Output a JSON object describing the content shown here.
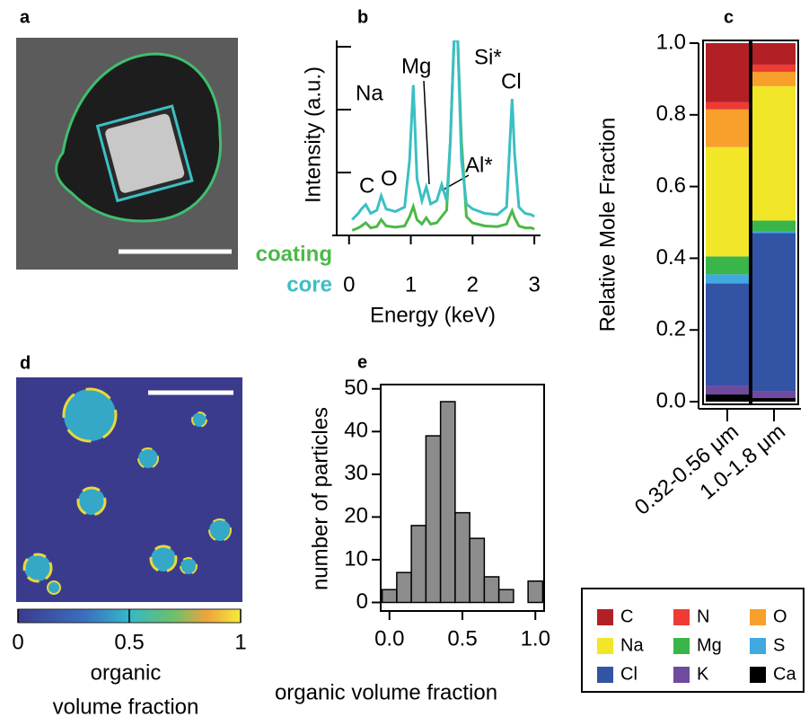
{
  "panel_a": {
    "label": "a"
  },
  "panel_d": {
    "label": "d",
    "colorbar": {
      "lim": [
        0,
        1
      ],
      "ticks": [
        0,
        0.5,
        1
      ],
      "label_lines": [
        "organic",
        "volume fraction"
      ]
    }
  },
  "chart_data": [
    {
      "type": "line",
      "label": "b",
      "xlabel": "Energy (keV)",
      "ylabel": "Intensity (a.u.)",
      "xlim": [
        -0.2,
        3.1
      ],
      "xticks": [
        0,
        1,
        2,
        3
      ],
      "ylim": [
        0,
        3.1
      ],
      "yticks": [
        1,
        2,
        3
      ],
      "x": [
        0.05,
        0.15,
        0.2,
        0.27,
        0.35,
        0.45,
        0.52,
        0.6,
        0.75,
        0.9,
        0.98,
        1.04,
        1.1,
        1.18,
        1.25,
        1.32,
        1.42,
        1.5,
        1.58,
        1.64,
        1.7,
        1.76,
        1.82,
        1.9,
        2.0,
        2.2,
        2.4,
        2.55,
        2.6,
        2.64,
        2.68,
        2.75,
        2.85,
        2.95,
        3.0
      ],
      "series": [
        {
          "name": "coating",
          "color": "#4cb848",
          "values": [
            0.08,
            0.12,
            0.15,
            0.2,
            0.12,
            0.14,
            0.25,
            0.15,
            0.13,
            0.15,
            0.3,
            0.46,
            0.25,
            0.18,
            0.28,
            0.18,
            0.2,
            0.3,
            0.4,
            1.5,
            3.1,
            3.1,
            1.5,
            0.3,
            0.2,
            0.15,
            0.14,
            0.18,
            0.3,
            0.39,
            0.28,
            0.15,
            0.12,
            0.12,
            0.1
          ]
        },
        {
          "name": "core",
          "color": "#3bbfc4",
          "values": [
            0.25,
            0.35,
            0.42,
            0.49,
            0.35,
            0.4,
            0.63,
            0.42,
            0.38,
            0.45,
            1.2,
            2.39,
            0.9,
            0.55,
            0.77,
            0.5,
            0.55,
            0.81,
            0.55,
            1.5,
            3.1,
            3.1,
            1.2,
            0.5,
            0.42,
            0.35,
            0.33,
            0.45,
            1.4,
            2.17,
            1.3,
            0.45,
            0.35,
            0.33,
            0.3
          ]
        }
      ],
      "annotations": [
        "Na",
        "Mg",
        "Si*",
        "Cl",
        "C",
        "O",
        "Al*"
      ]
    },
    {
      "type": "stacked_bar",
      "label": "c",
      "ylabel": "Relative Mole Fraction",
      "categories": [
        "0.32-0.56 μm",
        "1.0-1.8 μm"
      ],
      "ylim": [
        -0.02,
        1.0
      ],
      "yticks": [
        {
          "value": 0,
          "label": "0.0"
        },
        {
          "value": 0.2,
          "label": "0.2"
        },
        {
          "value": 0.4,
          "label": "0.4"
        },
        {
          "value": 0.6,
          "label": "0.6"
        },
        {
          "value": 0.8,
          "label": "0.8"
        },
        {
          "value": 1,
          "label": "1.0"
        }
      ],
      "series": [
        {
          "name": "C",
          "color": "#b22026",
          "values": [
            0.165,
            0.06
          ]
        },
        {
          "name": "N",
          "color": "#ee3b33",
          "values": [
            0.02,
            0.02
          ]
        },
        {
          "name": "O",
          "color": "#f7a02c",
          "values": [
            0.105,
            0.04
          ]
        },
        {
          "name": "Na",
          "color": "#f2e629",
          "values": [
            0.305,
            0.375
          ]
        },
        {
          "name": "Mg",
          "color": "#3ab54a",
          "values": [
            0.05,
            0.03
          ]
        },
        {
          "name": "S",
          "color": "#3fa9e0",
          "values": [
            0.025,
            0.005
          ]
        },
        {
          "name": "Cl",
          "color": "#3353a4",
          "values": [
            0.285,
            0.44
          ]
        },
        {
          "name": "K",
          "color": "#6f4a9e",
          "values": [
            0.025,
            0.02
          ]
        },
        {
          "name": "Ca",
          "color": "#000000",
          "values": [
            0.02,
            0.01
          ]
        }
      ]
    },
    {
      "type": "histogram",
      "label": "e",
      "xlabel": "organic volume fraction",
      "ylabel": "number of particles",
      "bins": [
        -0.05,
        0.05,
        0.15,
        0.25,
        0.35,
        0.45,
        0.55,
        0.65,
        0.75,
        0.85,
        0.95,
        1.05
      ],
      "values": [
        3,
        7,
        18,
        39,
        47,
        21,
        15,
        6,
        3,
        0,
        5
      ],
      "color": "#8c8c8c",
      "xlim": [
        -0.06,
        1.06
      ],
      "xticks": [
        {
          "value": 0,
          "label": "0.0"
        },
        {
          "value": 0.5,
          "label": "0.5"
        },
        {
          "value": 1,
          "label": "1.0"
        }
      ],
      "ylim": [
        -2,
        51
      ],
      "yticks": [
        0,
        10,
        20,
        30,
        40,
        50
      ]
    }
  ]
}
